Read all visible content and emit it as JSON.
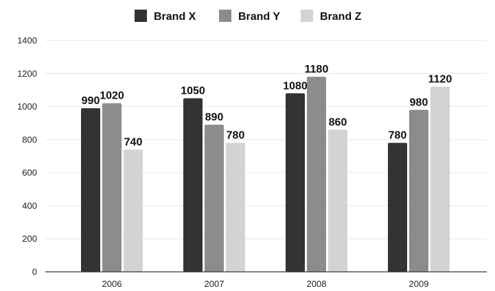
{
  "chart_data": {
    "type": "bar",
    "title": "",
    "xlabel": "",
    "ylabel": "",
    "categories": [
      "2006",
      "2007",
      "2008",
      "2009"
    ],
    "series": [
      {
        "name": "Brand X",
        "color": "#333333",
        "values": [
          990,
          1050,
          1080,
          780
        ]
      },
      {
        "name": "Brand Y",
        "color": "#8c8c8c",
        "values": [
          1020,
          890,
          1180,
          980
        ]
      },
      {
        "name": "Brand Z",
        "color": "#d3d3d3",
        "values": [
          740,
          780,
          860,
          1120
        ]
      }
    ],
    "ylim": [
      0,
      1400
    ],
    "yticks": [
      0,
      200,
      400,
      600,
      800,
      1000,
      1200,
      1400
    ],
    "grid": true,
    "legend_position": "top-center",
    "data_labels": true
  }
}
